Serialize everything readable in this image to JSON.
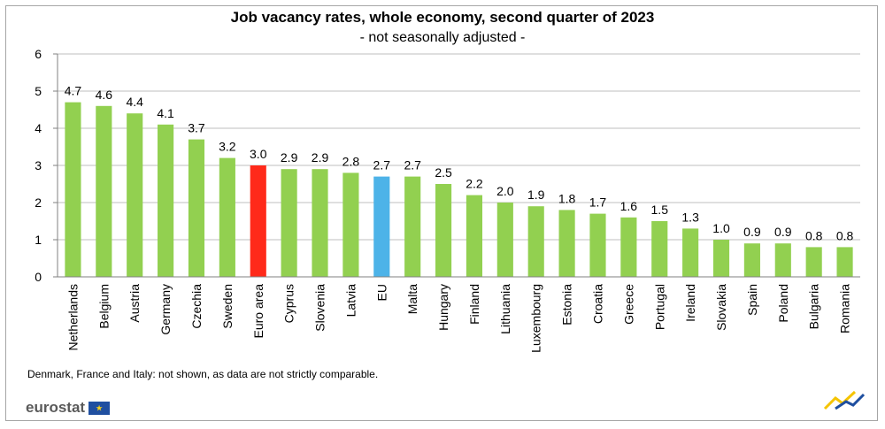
{
  "header": {
    "title": "Job vacancy rates, whole economy, second quarter of 2023",
    "subtitle": "- not seasonally adjusted -"
  },
  "footer": {
    "note": "Denmark, France and Italy: not shown, as data are not strictly comparable.",
    "logo_text": "eurostat",
    "logo_flag_icon": "eu-flag-icon",
    "brand_mark_icon": "eurostat-arrow-icon"
  },
  "colors": {
    "default": "#92d050",
    "euro_area": "#ff2a1a",
    "eu": "#4db3e8",
    "gridline": "#bfbfbf",
    "axis": "#808080"
  },
  "chart_data": {
    "type": "bar",
    "categories": [
      "Netherlands",
      "Belgium",
      "Austria",
      "Germany",
      "Czechia",
      "Sweden",
      "Euro area",
      "Cyprus",
      "Slovenia",
      "Latvia",
      "EU",
      "Malta",
      "Hungary",
      "Finland",
      "Lithuania",
      "Luxembourg",
      "Estonia",
      "Croatia",
      "Greece",
      "Portugal",
      "Ireland",
      "Slovakia",
      "Spain",
      "Poland",
      "Bulgaria",
      "Romania"
    ],
    "values": [
      4.7,
      4.6,
      4.4,
      4.1,
      3.7,
      3.2,
      3.0,
      2.9,
      2.9,
      2.8,
      2.7,
      2.7,
      2.5,
      2.2,
      2.0,
      1.9,
      1.8,
      1.7,
      1.6,
      1.5,
      1.3,
      1.0,
      0.9,
      0.9,
      0.8,
      0.8
    ],
    "data_labels": [
      "4.7",
      "4.6",
      "4.4",
      "4.1",
      "3.7",
      "3.2",
      "3.0",
      "2.9",
      "2.9",
      "2.8",
      "2.7",
      "2.7",
      "2.5",
      "2.2",
      "2.0",
      "1.9",
      "1.8",
      "1.7",
      "1.6",
      "1.5",
      "1.3",
      "1.0",
      "0.9",
      "0.9",
      "0.8",
      "0.8"
    ],
    "highlight": {
      "Euro area": "euro_area",
      "EU": "eu"
    },
    "yticks": [
      "0",
      "1",
      "2",
      "3",
      "4",
      "5",
      "6"
    ],
    "ylim": [
      0,
      6
    ],
    "grid": true,
    "legend": "none",
    "xlabel": "",
    "ylabel": ""
  }
}
